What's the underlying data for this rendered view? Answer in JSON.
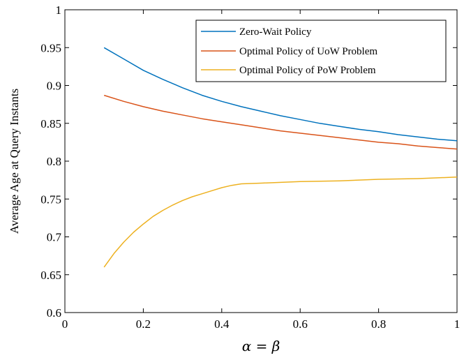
{
  "chart_data": {
    "type": "line",
    "xlabel": "α = β",
    "ylabel": "Average Age at Query Instants",
    "xlim": [
      0,
      1
    ],
    "ylim": [
      0.6,
      1
    ],
    "xticks": [
      0,
      0.2,
      0.4,
      0.6,
      0.8,
      1
    ],
    "xtick_labels": [
      "0",
      "0.2",
      "0.4",
      "0.6",
      "0.8",
      "1"
    ],
    "yticks": [
      0.6,
      0.65,
      0.7,
      0.75,
      0.8,
      0.85,
      0.9,
      0.95,
      1
    ],
    "ytick_labels": [
      "0.6",
      "0.65",
      "0.7",
      "0.75",
      "0.8",
      "0.85",
      "0.9",
      "0.95",
      "1"
    ],
    "grid": false,
    "legend_position": "top-right",
    "series": [
      {
        "name": "Zero-Wait Policy",
        "color": "#0072BD",
        "x": [
          0.1,
          0.15,
          0.2,
          0.25,
          0.3,
          0.35,
          0.4,
          0.45,
          0.5,
          0.55,
          0.6,
          0.65,
          0.7,
          0.75,
          0.8,
          0.85,
          0.9,
          0.95,
          1.0
        ],
        "y": [
          0.95,
          0.935,
          0.92,
          0.908,
          0.897,
          0.887,
          0.879,
          0.872,
          0.866,
          0.86,
          0.855,
          0.85,
          0.846,
          0.842,
          0.839,
          0.835,
          0.832,
          0.829,
          0.827
        ]
      },
      {
        "name": "Optimal Policy of UoW Problem",
        "color": "#D95319",
        "x": [
          0.1,
          0.15,
          0.2,
          0.25,
          0.3,
          0.35,
          0.4,
          0.45,
          0.5,
          0.55,
          0.6,
          0.65,
          0.7,
          0.75,
          0.8,
          0.85,
          0.9,
          0.95,
          1.0
        ],
        "y": [
          0.887,
          0.879,
          0.872,
          0.866,
          0.861,
          0.856,
          0.852,
          0.848,
          0.844,
          0.84,
          0.837,
          0.834,
          0.831,
          0.828,
          0.825,
          0.823,
          0.82,
          0.818,
          0.816
        ]
      },
      {
        "name": "Optimal Policy of PoW Problem",
        "color": "#EDB120",
        "x": [
          0.1,
          0.125,
          0.15,
          0.175,
          0.2,
          0.225,
          0.25,
          0.275,
          0.3,
          0.325,
          0.35,
          0.375,
          0.4,
          0.425,
          0.45,
          0.5,
          0.6,
          0.7,
          0.8,
          0.9,
          1.0
        ],
        "y": [
          0.66,
          0.678,
          0.693,
          0.706,
          0.717,
          0.727,
          0.735,
          0.742,
          0.748,
          0.753,
          0.757,
          0.761,
          0.765,
          0.768,
          0.77,
          0.771,
          0.773,
          0.774,
          0.776,
          0.777,
          0.779
        ]
      }
    ]
  }
}
